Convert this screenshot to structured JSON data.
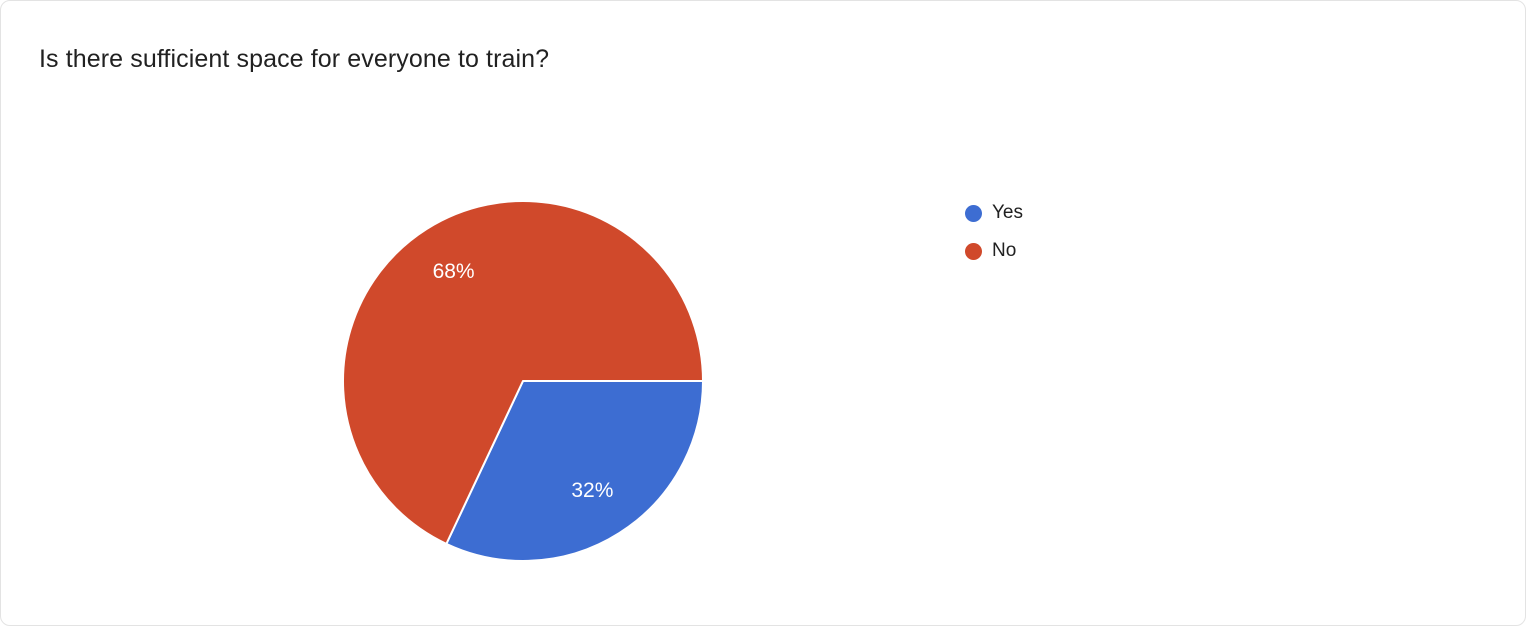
{
  "page": {
    "title": "Is there sufficient space for everyone to train?"
  },
  "chart_data": {
    "type": "pie",
    "title": "Is there sufficient space for everyone to train?",
    "labels": [
      "Yes",
      "No"
    ],
    "values": [
      32,
      68
    ],
    "value_labels": [
      "32%",
      "68%"
    ],
    "colors": [
      "#3d6dd2",
      "#d0492b"
    ],
    "slice_label_color": "#ffffff",
    "legend_position": "right",
    "start_angle_deg": 0,
    "direction": "clockwise",
    "legend": [
      {
        "label": "Yes",
        "color": "#3d6dd2"
      },
      {
        "label": "No",
        "color": "#d0492b"
      }
    ]
  }
}
